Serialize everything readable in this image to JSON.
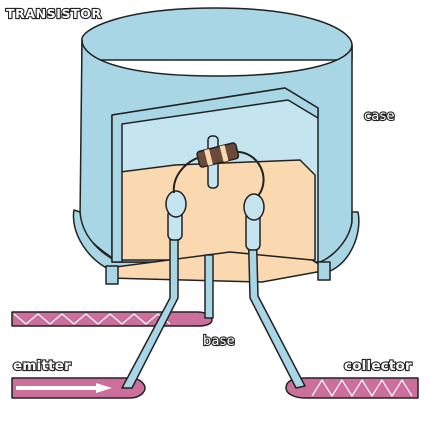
{
  "title": "TRANSISTOR",
  "labels": {
    "case": "case",
    "base": "base",
    "emitter": "emitter",
    "collector": "collector"
  },
  "colors": {
    "case_blue": "#a8d6e5",
    "inner_orange": "#fad9b0",
    "lead_pink": "#cc6f9c",
    "outline": "#222222"
  }
}
